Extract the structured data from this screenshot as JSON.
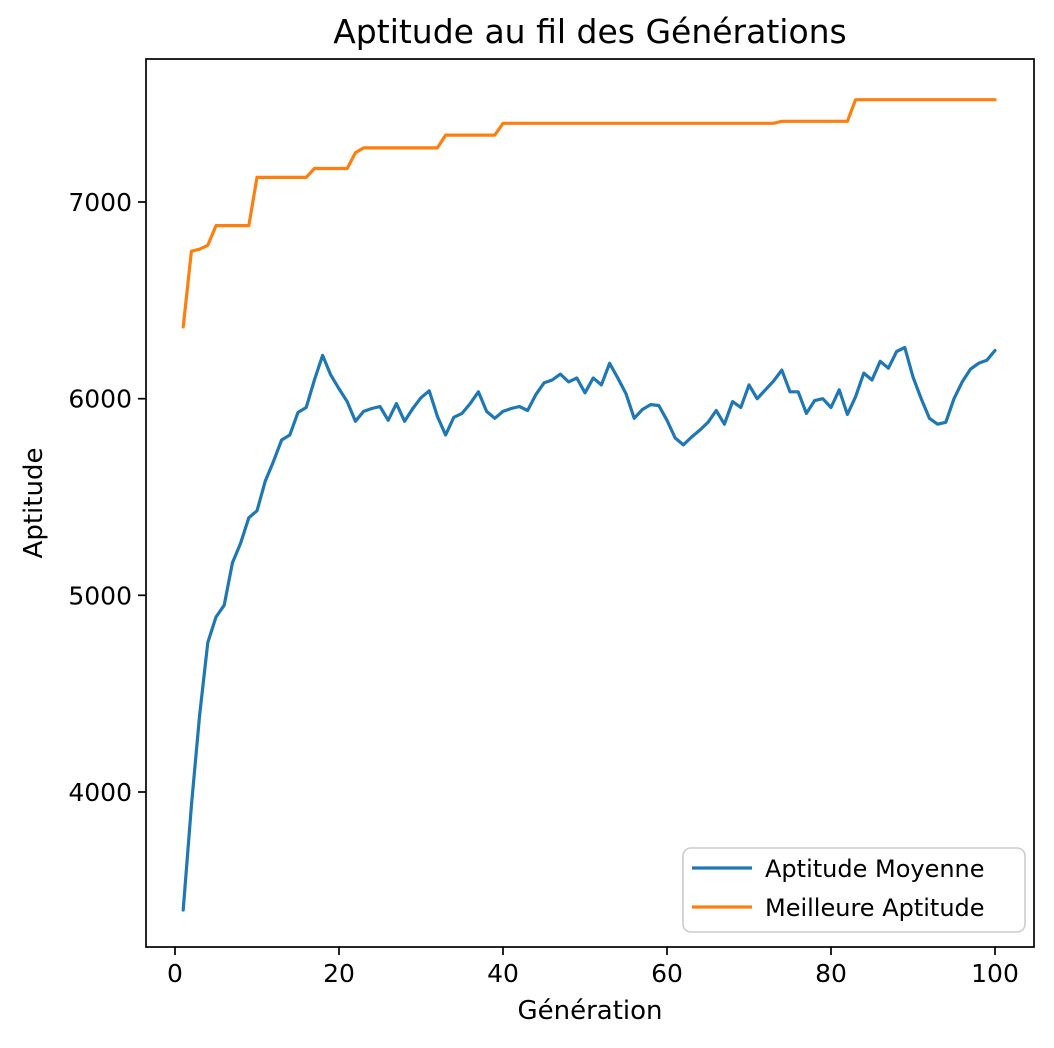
{
  "figure": {
    "title": "Aptitude au fil des Générations",
    "xlabel": "Génération",
    "ylabel": "Aptitude"
  },
  "legend": {
    "items": [
      {
        "label": "Aptitude Moyenne",
        "color": "#1f77b4"
      },
      {
        "label": "Meilleure Aptitude",
        "color": "#ff7f0e"
      }
    ]
  },
  "chart_data": {
    "type": "line",
    "title": "Aptitude au fil des Générations",
    "xlabel": "Génération",
    "ylabel": "Aptitude",
    "grid": false,
    "legend_position": "lower right",
    "xlim": [
      -3.54,
      104.75
    ],
    "ylim": [
      3212,
      7727
    ],
    "xticks": [
      0,
      20,
      40,
      60,
      80,
      100
    ],
    "yticks": [
      4000,
      5000,
      6000,
      7000
    ],
    "x": [
      1,
      2,
      3,
      4,
      5,
      6,
      7,
      8,
      9,
      10,
      11,
      12,
      13,
      14,
      15,
      16,
      17,
      18,
      19,
      20,
      21,
      22,
      23,
      24,
      25,
      26,
      27,
      28,
      29,
      30,
      31,
      32,
      33,
      34,
      35,
      36,
      37,
      38,
      39,
      40,
      41,
      42,
      43,
      44,
      45,
      46,
      47,
      48,
      49,
      50,
      51,
      52,
      53,
      54,
      55,
      56,
      57,
      58,
      59,
      60,
      61,
      62,
      63,
      64,
      65,
      66,
      67,
      68,
      69,
      70,
      71,
      72,
      73,
      74,
      75,
      76,
      77,
      78,
      79,
      80,
      81,
      82,
      83,
      84,
      85,
      86,
      87,
      88,
      89,
      90,
      91,
      92,
      93,
      94,
      95,
      96,
      97,
      98,
      99,
      100
    ],
    "series": [
      {
        "name": "Aptitude Moyenne",
        "color": "#1f77b4",
        "values": [
          3400,
          3930,
          4390,
          4760,
          4890,
          4950,
          5165,
          5265,
          5395,
          5430,
          5580,
          5680,
          5790,
          5815,
          5930,
          5955,
          6095,
          6220,
          6120,
          6050,
          5985,
          5885,
          5935,
          5950,
          5960,
          5890,
          5975,
          5885,
          5950,
          6005,
          6040,
          5910,
          5815,
          5905,
          5925,
          5975,
          6035,
          5935,
          5900,
          5935,
          5950,
          5960,
          5940,
          6020,
          6080,
          6095,
          6125,
          6085,
          6105,
          6030,
          6105,
          6070,
          6180,
          6105,
          6025,
          5900,
          5945,
          5970,
          5965,
          5890,
          5800,
          5765,
          5805,
          5840,
          5880,
          5940,
          5870,
          5985,
          5955,
          6070,
          6000,
          6045,
          6090,
          6145,
          6035,
          6035,
          5925,
          5990,
          6000,
          5955,
          6045,
          5920,
          6010,
          6130,
          6095,
          6190,
          6155,
          6240,
          6260,
          6110,
          6000,
          5900,
          5870,
          5880,
          6000,
          6085,
          6150,
          6180,
          6195,
          6245
        ]
      },
      {
        "name": "Meilleure Aptitude",
        "color": "#ff7f0e",
        "values": [
          6365,
          6750,
          6760,
          6780,
          6880,
          6880,
          6880,
          6880,
          6880,
          7125,
          7125,
          7125,
          7125,
          7125,
          7125,
          7125,
          7170,
          7170,
          7170,
          7170,
          7170,
          7250,
          7275,
          7275,
          7275,
          7275,
          7275,
          7275,
          7275,
          7275,
          7275,
          7275,
          7340,
          7340,
          7340,
          7340,
          7340,
          7340,
          7340,
          7400,
          7400,
          7400,
          7400,
          7400,
          7400,
          7400,
          7400,
          7400,
          7400,
          7400,
          7400,
          7400,
          7400,
          7400,
          7400,
          7400,
          7400,
          7400,
          7400,
          7400,
          7400,
          7400,
          7400,
          7400,
          7400,
          7400,
          7400,
          7400,
          7400,
          7400,
          7400,
          7400,
          7400,
          7410,
          7410,
          7410,
          7410,
          7410,
          7410,
          7410,
          7410,
          7410,
          7520,
          7520,
          7520,
          7520,
          7520,
          7520,
          7520,
          7520,
          7520,
          7520,
          7520,
          7520,
          7520,
          7520,
          7520,
          7520,
          7520,
          7520
        ]
      }
    ]
  }
}
